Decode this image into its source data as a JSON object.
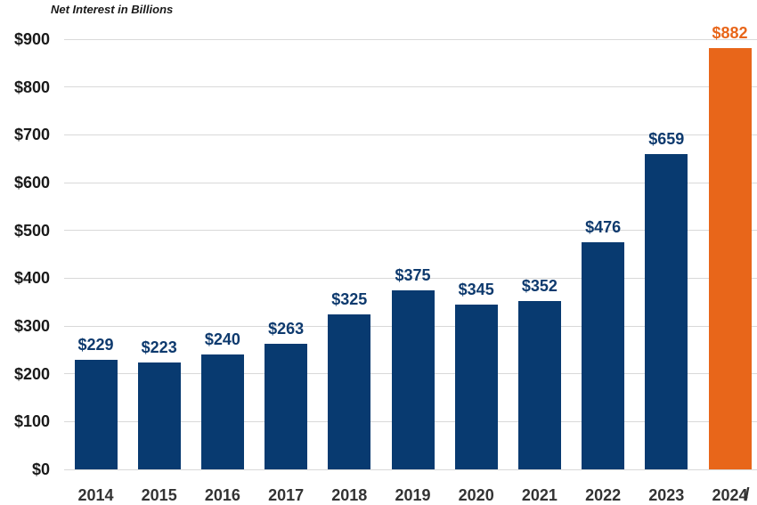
{
  "chart_data": {
    "type": "bar",
    "title": "Net Interest in Billions",
    "categories": [
      "2014",
      "2015",
      "2016",
      "2017",
      "2018",
      "2019",
      "2020",
      "2021",
      "2022",
      "2023",
      "2024"
    ],
    "values": [
      229,
      223,
      240,
      263,
      325,
      375,
      345,
      352,
      476,
      659,
      882
    ],
    "value_labels": [
      "$229",
      "$223",
      "$240",
      "$263",
      "$325",
      "$375",
      "$345",
      "$352",
      "$476",
      "$659",
      "$882"
    ],
    "xlabel": "",
    "ylabel": "",
    "ylim": [
      0,
      900
    ],
    "y_ticks": [
      0,
      100,
      200,
      300,
      400,
      500,
      600,
      700,
      800,
      900
    ],
    "y_tick_labels": [
      "$0",
      "$100",
      "$200",
      "$300",
      "$400",
      "$500",
      "$600",
      "$700",
      "$800",
      "$900"
    ],
    "grid": "horizontal",
    "legend": "none",
    "highlight_index": 10,
    "colors": {
      "bar": "#083A70",
      "highlight_bar": "#E8661A",
      "value_text": "#0E3A6E",
      "highlight_value_text": "#E8661A",
      "gridline": "#D9D9D9",
      "y_tick_text": "#1A1A1A",
      "x_tick_text": "#333333",
      "title_text": "#1A1A1A",
      "background": "#FFFFFF"
    }
  },
  "annotations": {
    "edge_slash": "/"
  }
}
